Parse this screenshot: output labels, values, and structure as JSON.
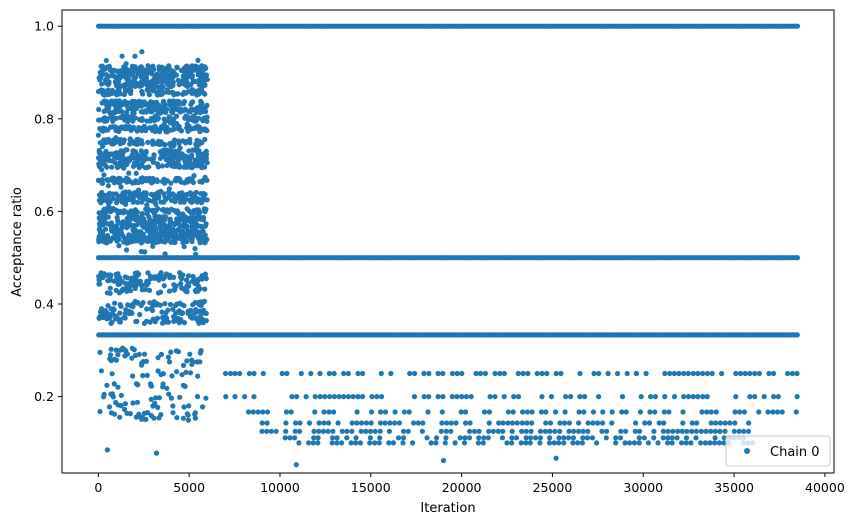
{
  "chart_data": {
    "type": "scatter",
    "title": "",
    "xlabel": "Iteration",
    "ylabel": "Acceptance ratio",
    "xlim": [
      -2000,
      40500
    ],
    "ylim": [
      0.035,
      1.035
    ],
    "xticks": [
      0,
      5000,
      10000,
      15000,
      20000,
      25000,
      30000,
      35000,
      40000
    ],
    "xtick_labels": [
      "0",
      "5000",
      "10000",
      "15000",
      "20000",
      "25000",
      "30000",
      "35000",
      "40000"
    ],
    "yticks": [
      0.2,
      0.4,
      0.6,
      0.8,
      1.0
    ],
    "ytick_labels": [
      "0.2",
      "0.4",
      "0.6",
      "0.8",
      "1.0"
    ],
    "grid": false,
    "legend_position": "bottom-right",
    "series": [
      {
        "name": "Chain 0",
        "color": "#1f77b4",
        "marker": "circle",
        "segments": [
          {
            "y": 1.0,
            "x_start": 0,
            "x_end": 38500
          },
          {
            "y": 0.5,
            "x_start": 0,
            "x_end": 38500
          },
          {
            "y": 0.3333,
            "x_start": 0,
            "x_end": 38500
          },
          {
            "y": 0.25,
            "x_start": 7000,
            "x_end": 38500
          },
          {
            "y": 0.2,
            "x_start": 7000,
            "x_end": 38500
          },
          {
            "y": 0.1667,
            "x_start": 8000,
            "x_end": 38500
          },
          {
            "y": 0.1429,
            "x_start": 8500,
            "x_end": 36500
          },
          {
            "y": 0.125,
            "x_start": 9000,
            "x_end": 36000
          },
          {
            "y": 0.1111,
            "x_start": 9500,
            "x_end": 36000
          },
          {
            "y": 0.1,
            "x_start": 10000,
            "x_end": 36000
          }
        ],
        "dense_region": {
          "x_start": 0,
          "x_end": 6000,
          "y_min": 0.07,
          "y_max": 0.945
        },
        "points": [
          {
            "x": 10900,
            "y": 0.053
          },
          {
            "x": 2400,
            "y": 0.945
          },
          {
            "x": 500,
            "y": 0.085
          },
          {
            "x": 3200,
            "y": 0.078
          },
          {
            "x": 25200,
            "y": 0.067
          },
          {
            "x": 19000,
            "y": 0.062
          }
        ]
      }
    ]
  }
}
